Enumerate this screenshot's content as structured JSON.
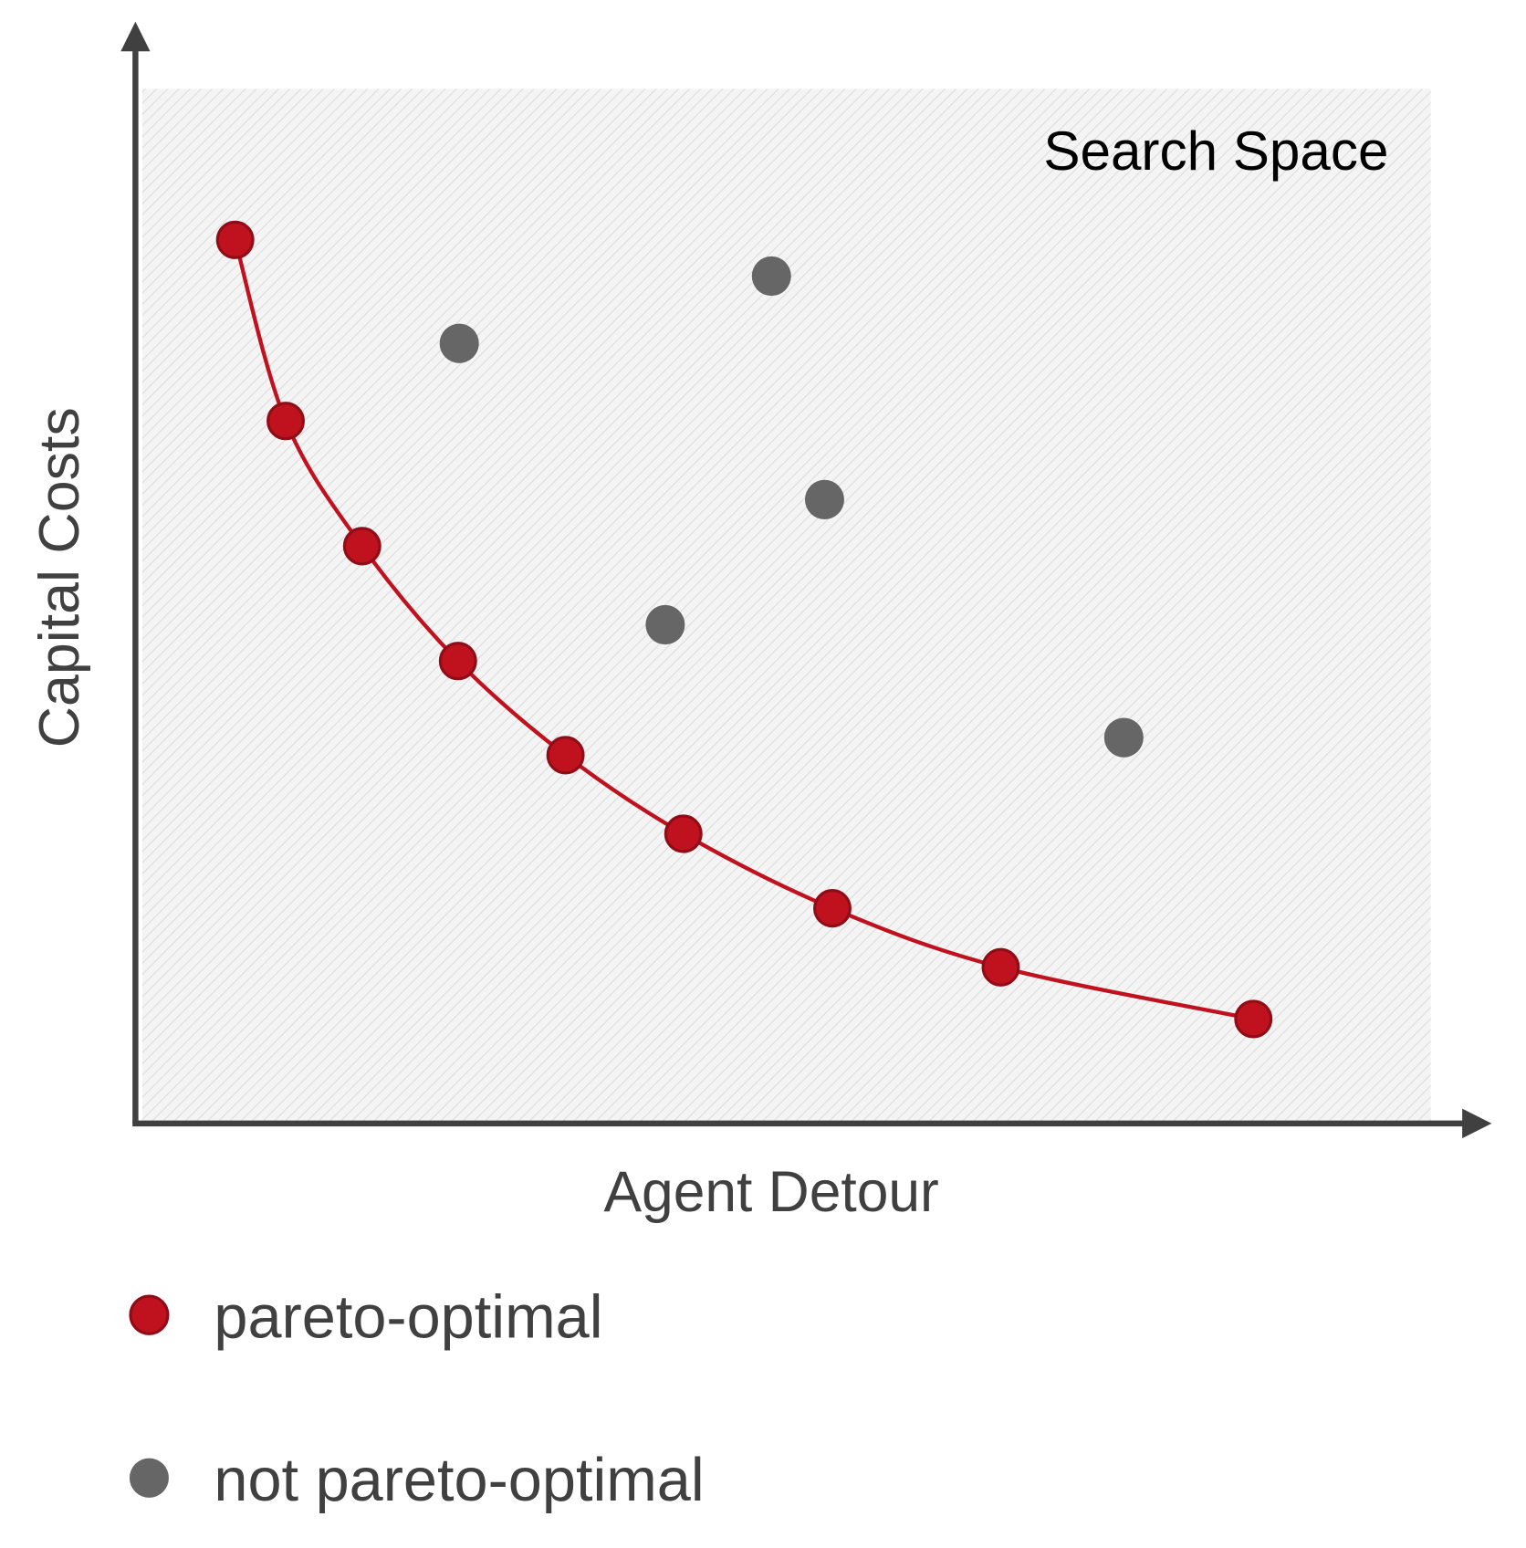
{
  "chart_data": {
    "type": "scatter",
    "annotation": "Search Space",
    "xlabel": "Agent Detour",
    "ylabel": "Capital Costs",
    "xlim": [
      0,
      100
    ],
    "ylim": [
      0,
      100
    ],
    "series": [
      {
        "name": "pareto-optimal",
        "color": "#c0111f",
        "line": true,
        "x": [
          7.7,
          11.6,
          17.5,
          24.9,
          33.2,
          42.3,
          53.8,
          66.8,
          86.3
        ],
        "values": [
          85.4,
          67.9,
          55.8,
          44.7,
          35.6,
          28.0,
          20.8,
          15.1,
          10.1
        ]
      },
      {
        "name": "not pareto-optimal",
        "color": "#666666",
        "line": false,
        "x": [
          25.0,
          49.1,
          53.2,
          40.9,
          76.3
        ],
        "values": [
          75.4,
          81.9,
          60.3,
          48.2,
          37.3
        ]
      }
    ]
  }
}
